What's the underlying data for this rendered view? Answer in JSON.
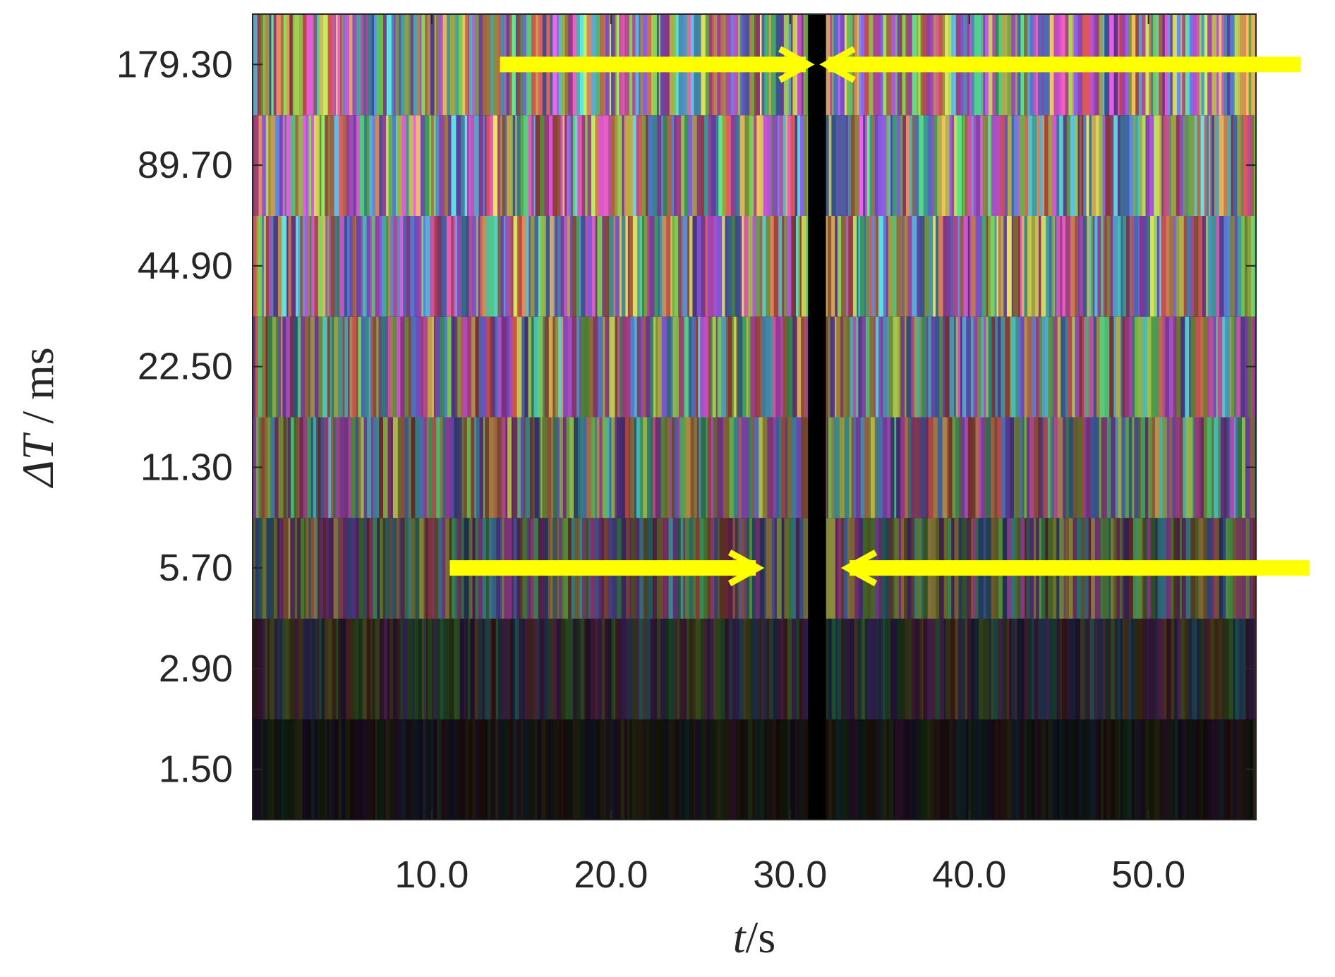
{
  "chart_data": {
    "type": "heatmap",
    "xlabel_var": "t",
    "xlabel_unit": "/s",
    "ylabel_var": "ΔT",
    "ylabel_unit": " / ms",
    "x_range": [
      0,
      56
    ],
    "x_ticks": [
      {
        "value": 10,
        "label": "10.0"
      },
      {
        "value": 20,
        "label": "20.0"
      },
      {
        "value": 30,
        "label": "30.0"
      },
      {
        "value": 40,
        "label": "40.0"
      },
      {
        "value": 50,
        "label": "50.0"
      }
    ],
    "rows": [
      {
        "label": "1.50",
        "brightness": 0.14
      },
      {
        "label": "2.90",
        "brightness": 0.3
      },
      {
        "label": "5.70",
        "brightness": 0.55
      },
      {
        "label": "11.30",
        "brightness": 0.72
      },
      {
        "label": "22.50",
        "brightness": 0.83
      },
      {
        "label": "44.90",
        "brightness": 0.9
      },
      {
        "label": "89.70",
        "brightness": 0.94
      },
      {
        "label": "179.30",
        "brightness": 0.96
      }
    ],
    "gap": {
      "x_start": 31.0,
      "x_end": 32.0
    },
    "grid": false,
    "colors": {
      "arrow": "#ffff00",
      "gap": "#000000",
      "axis": "#262626",
      "stripe_palette": [
        "#ff66cc",
        "#66ffff",
        "#ccff66",
        "#ff9966",
        "#9966ff",
        "#66ff99",
        "#ffff66",
        "#6699ff",
        "#ff6666",
        "#cc66ff",
        "#66ccff",
        "#ffcc66",
        "#99ff66",
        "#ff66ff"
      ]
    },
    "annotations": [
      {
        "type": "arrow",
        "row_label": "179.30",
        "x_from": 13.8,
        "x_to": 31.0
      },
      {
        "type": "arrow",
        "row_label": "179.30",
        "x_from": 58.5,
        "x_to": 32.0
      },
      {
        "type": "arrow",
        "row_label": "5.70",
        "x_from": 11.0,
        "x_to": 28.2
      },
      {
        "type": "arrow",
        "row_label": "5.70",
        "x_from": 59.0,
        "x_to": 33.2
      }
    ]
  }
}
